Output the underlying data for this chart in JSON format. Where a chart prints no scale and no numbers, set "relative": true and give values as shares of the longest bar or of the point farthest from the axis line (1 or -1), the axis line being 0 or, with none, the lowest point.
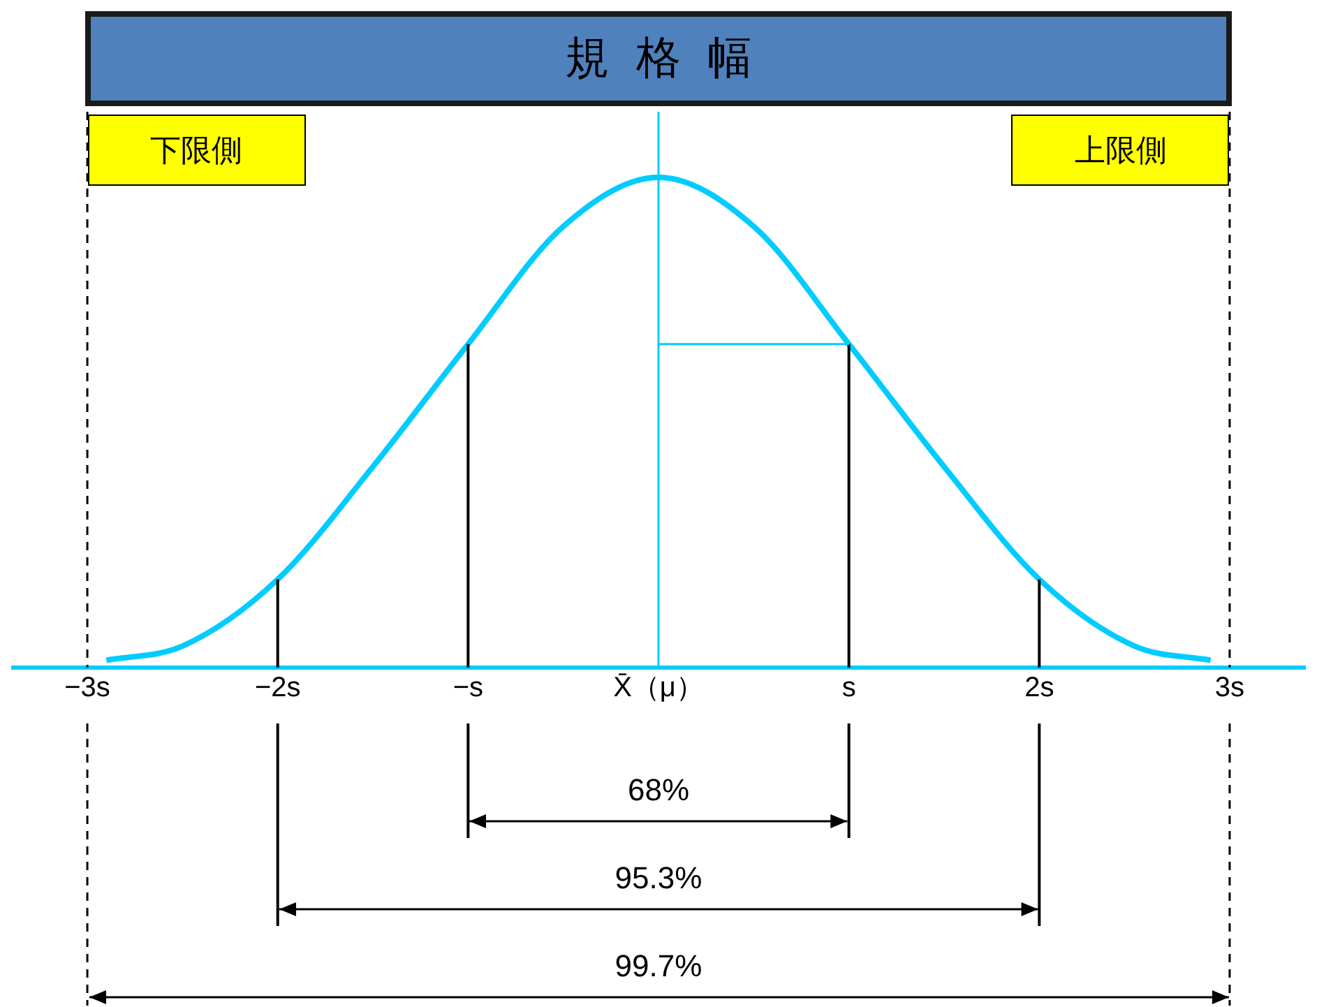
{
  "chart_data": {
    "type": "line",
    "title": "規格幅",
    "relative": true,
    "x": [
      -2.9,
      -2.5,
      -2,
      -1.5,
      -1,
      -0.5,
      0,
      0.5,
      1,
      1.5,
      2,
      2.5,
      2.9
    ],
    "series": [
      {
        "color": "#00ccff",
        "values": [
          0.015,
          0.044,
          0.18,
          0.41,
          0.66,
          0.9,
          1,
          0.9,
          0.66,
          0.41,
          0.18,
          0.044,
          0.015
        ]
      }
    ],
    "xlim": [
      -3.4,
      3.4
    ],
    "xticks": [
      {
        "value": -3,
        "label": "−3s"
      },
      {
        "value": -2,
        "label": "−2s"
      },
      {
        "value": -1,
        "label": "−s"
      },
      {
        "value": 0,
        "label": "X̄（μ）"
      },
      {
        "value": 1,
        "label": "s"
      },
      {
        "value": 2,
        "label": "2s"
      },
      {
        "value": 3,
        "label": "3s"
      }
    ],
    "marker": "none",
    "grid": false,
    "legend": false,
    "ref_lines": [
      {
        "axis": "x",
        "value": 0,
        "color": "#00ccff"
      },
      {
        "axis": "x",
        "value": -1,
        "color": "#000000"
      },
      {
        "axis": "x",
        "value": 1,
        "color": "#000000"
      },
      {
        "axis": "x",
        "value": -2,
        "color": "#000000"
      },
      {
        "axis": "x",
        "value": 2,
        "color": "#000000"
      },
      {
        "axis": "x",
        "value": -3,
        "color": "#000000",
        "line_style": "dashed"
      },
      {
        "axis": "x",
        "value": 3,
        "color": "#000000",
        "line_style": "dashed"
      },
      {
        "axis": "y",
        "value": 0.66,
        "color": "#00ccff"
      }
    ],
    "annotations": [
      "下限側",
      "上限側",
      "68%",
      "95.3%",
      "99.7%"
    ]
  }
}
